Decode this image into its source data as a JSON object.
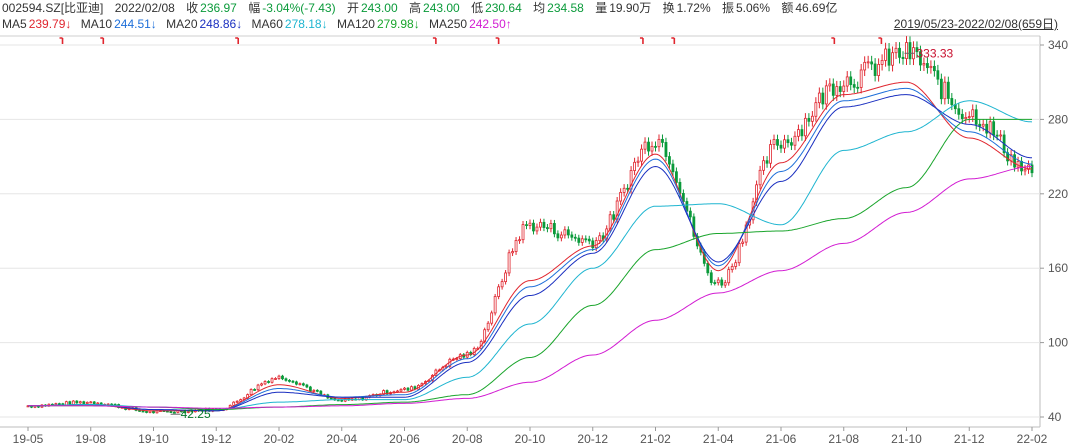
{
  "quote": {
    "symbol": "002594.SZ[比亚迪]",
    "date": "2022/02/08",
    "close_label": "收",
    "close": "236.97",
    "change_label": "幅",
    "change": "-3.04%(-7.43)",
    "open_label": "开",
    "open": "243.00",
    "high_label": "高",
    "high": "243.00",
    "low_label": "低",
    "low": "230.64",
    "avg_label": "均",
    "avg": "234.58",
    "volume_label": "量",
    "volume": "19.90万",
    "turnover_label": "换",
    "turnover": "1.72%",
    "amplitude_label": "振",
    "amplitude": "5.06%",
    "amount_label": "额",
    "amount": "46.69亿"
  },
  "range_label": "2019/05/23-2022/02/08(659日)",
  "ma_legend": [
    {
      "name": "MA5",
      "value": "239.79↓",
      "color": "#e0262f"
    },
    {
      "name": "MA10",
      "value": "244.51↓",
      "color": "#1e6fd9"
    },
    {
      "name": "MA20",
      "value": "248.86↓",
      "color": "#1a2fc0"
    },
    {
      "name": "MA60",
      "value": "278.18↓",
      "color": "#1fb5d0"
    },
    {
      "name": "MA120",
      "value": "279.98↓",
      "color": "#1aa52c"
    },
    {
      "name": "MA250",
      "value": "242.50↑",
      "color": "#d21cd2"
    }
  ],
  "colors": {
    "up": "#e0262f",
    "down": "#0a9a3a",
    "grid": "#e6e6e6",
    "axis": "#888888"
  },
  "chart_data": {
    "type": "line",
    "title": "002594.SZ[比亚迪]",
    "ylim": [
      40,
      340
    ],
    "yticks": [
      40,
      100,
      160,
      220,
      280,
      340
    ],
    "xticks": [
      "19-05",
      "19-08",
      "19-10",
      "19-12",
      "20-02",
      "20-04",
      "20-06",
      "20-08",
      "20-10",
      "20-12",
      "21-02",
      "21-04",
      "21-06",
      "21-08",
      "21-10",
      "21-12",
      "22-02"
    ],
    "annotations": [
      {
        "text": "333.33",
        "x": "2021-10",
        "y": 333.33,
        "kind": "high"
      },
      {
        "text": "42.25",
        "x": "2019-11",
        "y": 42.25,
        "kind": "low"
      }
    ],
    "series": [
      {
        "name": "MA5",
        "color": "#e0262f",
        "x": [
          "19-05",
          "19-08",
          "19-10",
          "19-12",
          "20-02",
          "20-04",
          "20-06",
          "20-08",
          "20-10",
          "20-12",
          "21-02",
          "21-04",
          "21-06",
          "21-08",
          "21-10",
          "21-12",
          "22-02"
        ],
        "values": [
          49,
          50,
          45,
          45,
          66,
          55,
          60,
          90,
          150,
          178,
          252,
          158,
          245,
          300,
          310,
          265,
          240
        ]
      },
      {
        "name": "MA10",
        "color": "#1e6fd9",
        "x": [
          "19-05",
          "19-08",
          "19-10",
          "19-12",
          "20-02",
          "20-04",
          "20-06",
          "20-08",
          "20-10",
          "20-12",
          "21-02",
          "21-04",
          "21-06",
          "21-08",
          "21-10",
          "21-12",
          "22-02"
        ],
        "values": [
          49,
          50,
          46,
          45,
          63,
          56,
          58,
          87,
          145,
          175,
          248,
          162,
          238,
          295,
          305,
          270,
          244
        ]
      },
      {
        "name": "MA20",
        "color": "#1a2fc0",
        "x": [
          "19-05",
          "19-08",
          "19-10",
          "19-12",
          "20-02",
          "20-04",
          "20-06",
          "20-08",
          "20-10",
          "20-12",
          "21-02",
          "21-04",
          "21-06",
          "21-08",
          "21-10",
          "21-12",
          "22-02"
        ],
        "values": [
          49,
          50,
          46,
          45,
          60,
          56,
          56,
          84,
          138,
          172,
          242,
          165,
          230,
          290,
          300,
          276,
          249
        ]
      },
      {
        "name": "MA60",
        "color": "#1fb5d0",
        "x": [
          "19-05",
          "19-08",
          "19-10",
          "19-12",
          "20-02",
          "20-04",
          "20-06",
          "20-08",
          "20-10",
          "20-12",
          "21-02",
          "21-04",
          "21-06",
          "21-08",
          "21-10",
          "21-12",
          "22-02"
        ],
        "values": [
          49,
          50,
          48,
          46,
          52,
          54,
          54,
          72,
          115,
          160,
          210,
          212,
          195,
          255,
          270,
          295,
          278
        ]
      },
      {
        "name": "MA120",
        "color": "#1aa52c",
        "x": [
          "19-05",
          "19-08",
          "19-10",
          "19-12",
          "20-02",
          "20-04",
          "20-06",
          "20-08",
          "20-10",
          "20-12",
          "21-02",
          "21-04",
          "21-06",
          "21-08",
          "21-10",
          "21-12",
          "22-02"
        ],
        "values": [
          49,
          49,
          48,
          46,
          48,
          50,
          52,
          58,
          88,
          130,
          175,
          188,
          190,
          200,
          225,
          280,
          280
        ]
      },
      {
        "name": "MA250",
        "color": "#d21cd2",
        "x": [
          "19-05",
          "19-08",
          "19-10",
          "19-12",
          "20-02",
          "20-04",
          "20-06",
          "20-08",
          "20-10",
          "20-12",
          "21-02",
          "21-04",
          "21-06",
          "21-08",
          "21-10",
          "21-12",
          "22-02"
        ],
        "values": [
          49,
          49,
          48,
          47,
          48,
          49,
          51,
          55,
          68,
          90,
          118,
          140,
          158,
          180,
          205,
          232,
          242
        ]
      },
      {
        "name": "Close",
        "color": "#e0262f",
        "x": [
          "19-05",
          "19-08",
          "19-10",
          "19-12",
          "20-02",
          "20-04",
          "20-06",
          "20-08",
          "20-10",
          "20-12",
          "21-02",
          "21-04",
          "21-06",
          "21-08",
          "21-10",
          "21-12",
          "22-02"
        ],
        "values": [
          49,
          52,
          44,
          46,
          72,
          53,
          62,
          90,
          195,
          182,
          265,
          148,
          262,
          312,
          333,
          285,
          237
        ]
      }
    ]
  }
}
